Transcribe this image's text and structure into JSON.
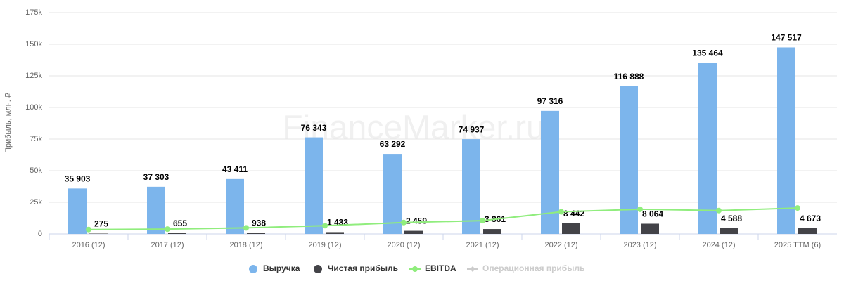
{
  "chart_data": {
    "type": "bar",
    "watermark": "FinanceMarker.ru",
    "y_label": "Прибыль, млн. ₽",
    "categories": [
      "2016 (12)",
      "2017 (12)",
      "2018 (12)",
      "2019 (12)",
      "2020 (12)",
      "2021 (12)",
      "2022 (12)",
      "2023 (12)",
      "2024 (12)",
      "2025 TTM (6)"
    ],
    "series": [
      {
        "name": "Выручка",
        "type": "bar",
        "color": "#7cb5ec",
        "values": [
          35903,
          37303,
          43411,
          76343,
          63292,
          74937,
          97316,
          116888,
          135464,
          147517
        ],
        "value_labels": [
          "35 903",
          "37 303",
          "43 411",
          "76 343",
          "63 292",
          "74 937",
          "97 316",
          "116 888",
          "135 464",
          "147 517"
        ]
      },
      {
        "name": "Чистая прибыль",
        "type": "bar",
        "color": "#434348",
        "values": [
          275,
          655,
          938,
          1433,
          2459,
          3861,
          8442,
          8064,
          4588,
          4673
        ],
        "value_labels": [
          "275",
          "655",
          "938",
          "1 433",
          "2 459",
          "3 861",
          "8 442",
          "8 064",
          "4 588",
          "4 673"
        ]
      },
      {
        "name": "EBITDA",
        "type": "line",
        "color": "#90ed7d",
        "values": [
          3500,
          3800,
          4800,
          6500,
          9000,
          10500,
          17500,
          19500,
          18500,
          20500
        ]
      }
    ],
    "hidden_series": [
      {
        "name": "Операционная прибыль",
        "color": "#cccccc"
      }
    ],
    "ylim": [
      0,
      175000
    ],
    "yticks": [
      {
        "value": 0,
        "label": "0"
      },
      {
        "value": 25000,
        "label": "25k"
      },
      {
        "value": 50000,
        "label": "50k"
      },
      {
        "value": 75000,
        "label": "75k"
      },
      {
        "value": 100000,
        "label": "100k"
      },
      {
        "value": 125000,
        "label": "125k"
      },
      {
        "value": 150000,
        "label": "150k"
      },
      {
        "value": 175000,
        "label": "175k"
      }
    ],
    "grid": true
  }
}
